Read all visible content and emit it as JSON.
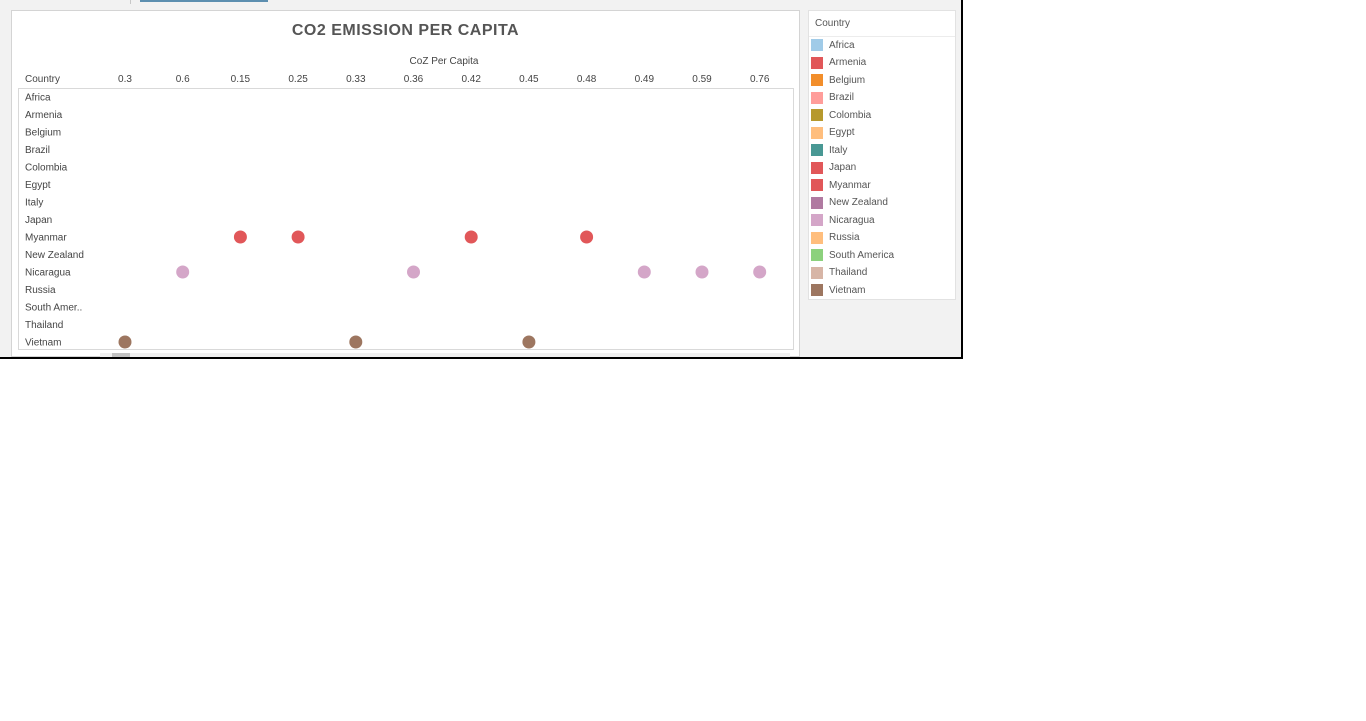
{
  "chart_data": {
    "type": "scatter",
    "title": "CO2 EMISSION PER CAPITA",
    "xlabel": "CoZ Per Capita",
    "row_header": "Country",
    "x_tick_labels": [
      "0.3",
      "0.6",
      "0.15",
      "0.25",
      "0.33",
      "0.36",
      "0.42",
      "0.45",
      "0.48",
      "0.49",
      "0.59",
      "0.76",
      "("
    ],
    "rows": [
      "Africa",
      "Armenia",
      "Belgium",
      "Brazil",
      "Colombia",
      "Egypt",
      "Italy",
      "Japan",
      "Myanmar",
      "New Zealand",
      "Nicaragua",
      "Russia",
      "South Amer..",
      "Thailand",
      "Vietnam"
    ],
    "series": [
      {
        "name": "Myanmar",
        "row": "Myanmar",
        "color": "#e15759",
        "x": [
          "0.15",
          "0.25",
          "0.42",
          "0.48"
        ]
      },
      {
        "name": "Nicaragua",
        "row": "Nicaragua",
        "color": "#d4a6c8",
        "x": [
          "0.6",
          "0.36",
          "0.49",
          "0.59",
          "0.76"
        ]
      },
      {
        "name": "Vietnam",
        "row": "Vietnam",
        "color": "#9d7660",
        "x": [
          "0.3",
          "0.33",
          "0.45"
        ]
      }
    ],
    "legend": {
      "title": "Country",
      "position": "right",
      "items": [
        {
          "label": "Africa",
          "color": "#a0cbe8"
        },
        {
          "label": "Armenia",
          "color": "#e15759"
        },
        {
          "label": "Belgium",
          "color": "#f28e2b"
        },
        {
          "label": "Brazil",
          "color": "#ff9d9a"
        },
        {
          "label": "Colombia",
          "color": "#b6992d"
        },
        {
          "label": "Egypt",
          "color": "#ffbe7d"
        },
        {
          "label": "Italy",
          "color": "#499894"
        },
        {
          "label": "Japan",
          "color": "#e15759"
        },
        {
          "label": "Myanmar",
          "color": "#e15759"
        },
        {
          "label": "New Zealand",
          "color": "#b07aa1"
        },
        {
          "label": "Nicaragua",
          "color": "#d4a6c8"
        },
        {
          "label": "Russia",
          "color": "#ffbe7d"
        },
        {
          "label": "South America",
          "color": "#8cd17d"
        },
        {
          "label": "Thailand",
          "color": "#d7b5a6"
        },
        {
          "label": "Vietnam",
          "color": "#9d7660"
        }
      ]
    },
    "grid": false
  }
}
